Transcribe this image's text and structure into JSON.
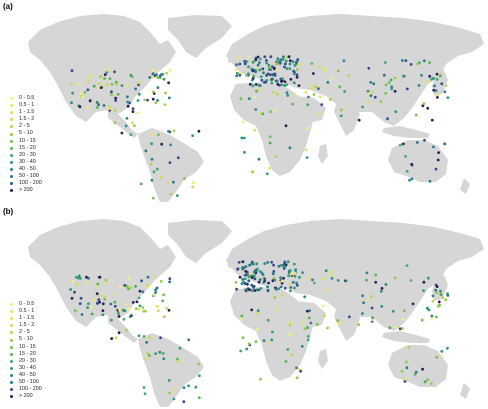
{
  "panels": [
    {
      "label": "(a)"
    },
    {
      "label": "(b)"
    }
  ],
  "legend": {
    "items": [
      {
        "label": "0 - 0.5",
        "color": "#f6ef7a"
      },
      {
        "label": "0.5 - 1",
        "color": "#ede666"
      },
      {
        "label": "1 - 1.5",
        "color": "#dce25b"
      },
      {
        "label": "1.5 - 2",
        "color": "#c8dd52"
      },
      {
        "label": "2 - 5",
        "color": "#b1d54a"
      },
      {
        "label": "5 - 10",
        "color": "#95cb47"
      },
      {
        "label": "10 - 15",
        "color": "#78bf4d"
      },
      {
        "label": "15 - 20",
        "color": "#5db457"
      },
      {
        "label": "20 - 30",
        "color": "#45a865"
      },
      {
        "label": "30 - 40",
        "color": "#359a76"
      },
      {
        "label": "40 - 50",
        "color": "#2c8a84"
      },
      {
        "label": "50 - 100",
        "color": "#2a788e"
      },
      {
        "label": "100 - 200",
        "color": "#304e8b"
      },
      {
        "label": "> 200",
        "color": "#2c1e56"
      }
    ]
  },
  "colors": {
    "land": "#d6d6d6",
    "background": "#ffffff"
  }
}
